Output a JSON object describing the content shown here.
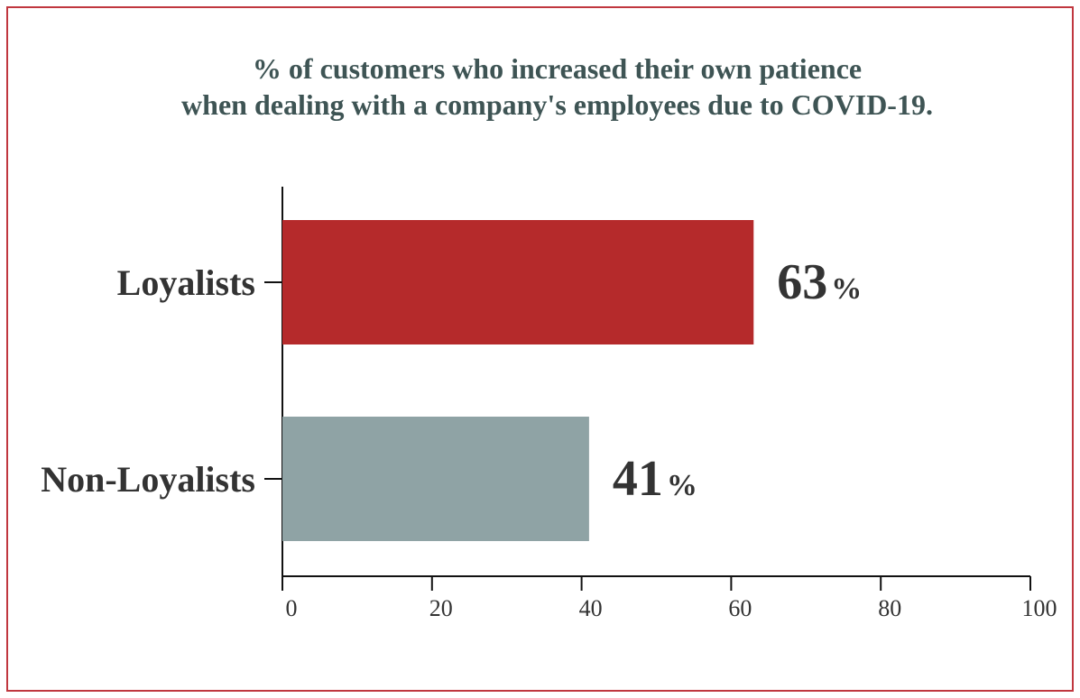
{
  "chart_data": {
    "type": "bar",
    "orientation": "horizontal",
    "title": [
      "% of customers who increased their own patience",
      "when dealing with a company's employees due to COVID-19."
    ],
    "categories": [
      "Loyalists",
      "Non-Loyalists"
    ],
    "values": [
      63,
      41
    ],
    "value_labels": [
      {
        "number": "63",
        "unit": "%"
      },
      {
        "number": "41",
        "unit": "%"
      }
    ],
    "colors": [
      "#b52a2b",
      "#8fa3a5"
    ],
    "xlim": [
      0,
      100
    ],
    "xticks": [
      0,
      20,
      40,
      60,
      80,
      100
    ],
    "xtick_labels": [
      "0",
      "20",
      "40",
      "60",
      "80",
      "100"
    ],
    "xlabel": "",
    "ylabel": "",
    "grid": false,
    "legend": "none"
  },
  "style": {
    "frame_color": "#c0373f",
    "title_color": "#3e5454",
    "text_color": "#333333",
    "axis_color": "#111111"
  }
}
